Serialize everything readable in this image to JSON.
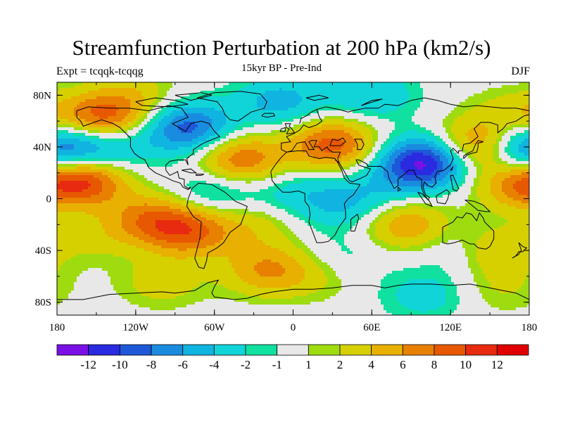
{
  "title": "Streamfunction Perturbation at 200 hPa (km2/s)",
  "subtitle": "15kyr BP - Pre-Ind",
  "left_string": "Expt = tcqqk-tcqqg",
  "right_string": "DJF",
  "lat_labels": [
    "80N",
    "40N",
    "0",
    "40S",
    "80S"
  ],
  "lat_values": [
    80,
    40,
    0,
    -40,
    -80
  ],
  "lon_labels": [
    "180",
    "120W",
    "60W",
    "0",
    "60E",
    "120E",
    "180"
  ],
  "lon_values": [
    -180,
    -120,
    -60,
    0,
    60,
    120,
    180
  ],
  "extent": {
    "lon_min": -180,
    "lon_max": 180,
    "lat_min": -90,
    "lat_max": 90
  },
  "colorbar": {
    "labels": [
      "-12",
      "-10",
      "-8",
      "-6",
      "-4",
      "-2",
      "-1",
      "1",
      "2",
      "4",
      "6",
      "8",
      "10",
      "12"
    ],
    "colors": [
      "#7a10e6",
      "#2a2ae0",
      "#1e58d8",
      "#1a8ce0",
      "#10b4e0",
      "#10d4d8",
      "#10e0a0",
      "#e8e8e8",
      "#9edc10",
      "#d6d000",
      "#e8b000",
      "#e88000",
      "#e85800",
      "#e82a10",
      "#e00000"
    ]
  },
  "field_centers": [
    {
      "lon": -145,
      "lat": 62,
      "value": 9
    },
    {
      "lon": -170,
      "lat": 38,
      "value": -5
    },
    {
      "lon": -160,
      "lat": 15,
      "value": 10
    },
    {
      "lon": -135,
      "lat": 40,
      "value": -4
    },
    {
      "lon": -80,
      "lat": 55,
      "value": -9
    },
    {
      "lon": -120,
      "lat": 80,
      "value": 3
    },
    {
      "lon": -40,
      "lat": 30,
      "value": 8
    },
    {
      "lon": -60,
      "lat": 5,
      "value": -4
    },
    {
      "lon": -110,
      "lat": -15,
      "value": 6
    },
    {
      "lon": -80,
      "lat": -25,
      "value": 8
    },
    {
      "lon": -30,
      "lat": -20,
      "value": 3
    },
    {
      "lon": -150,
      "lat": -30,
      "value": 2
    },
    {
      "lon": -100,
      "lat": -65,
      "value": 3
    },
    {
      "lon": -20,
      "lat": -55,
      "value": 6
    },
    {
      "lon": 20,
      "lat": -60,
      "value": 2
    },
    {
      "lon": -10,
      "lat": 75,
      "value": -5
    },
    {
      "lon": 60,
      "lat": 80,
      "value": -4
    },
    {
      "lon": 30,
      "lat": 42,
      "value": 9
    },
    {
      "lon": 0,
      "lat": 5,
      "value": -3
    },
    {
      "lon": 40,
      "lat": -5,
      "value": -4
    },
    {
      "lon": 100,
      "lat": 28,
      "value": -13
    },
    {
      "lon": 70,
      "lat": 10,
      "value": -2
    },
    {
      "lon": 140,
      "lat": 40,
      "value": 8
    },
    {
      "lon": 165,
      "lat": 65,
      "value": 3
    },
    {
      "lon": 175,
      "lat": 38,
      "value": -6
    },
    {
      "lon": 170,
      "lat": 10,
      "value": 5
    },
    {
      "lon": 85,
      "lat": -20,
      "value": 6
    },
    {
      "lon": 130,
      "lat": -40,
      "value": -3
    },
    {
      "lon": 150,
      "lat": -40,
      "value": 5
    },
    {
      "lon": 160,
      "lat": -70,
      "value": 2
    },
    {
      "lon": 100,
      "lat": -75,
      "value": -3
    },
    {
      "lon": 40,
      "lat": -45,
      "value": -2
    }
  ]
}
